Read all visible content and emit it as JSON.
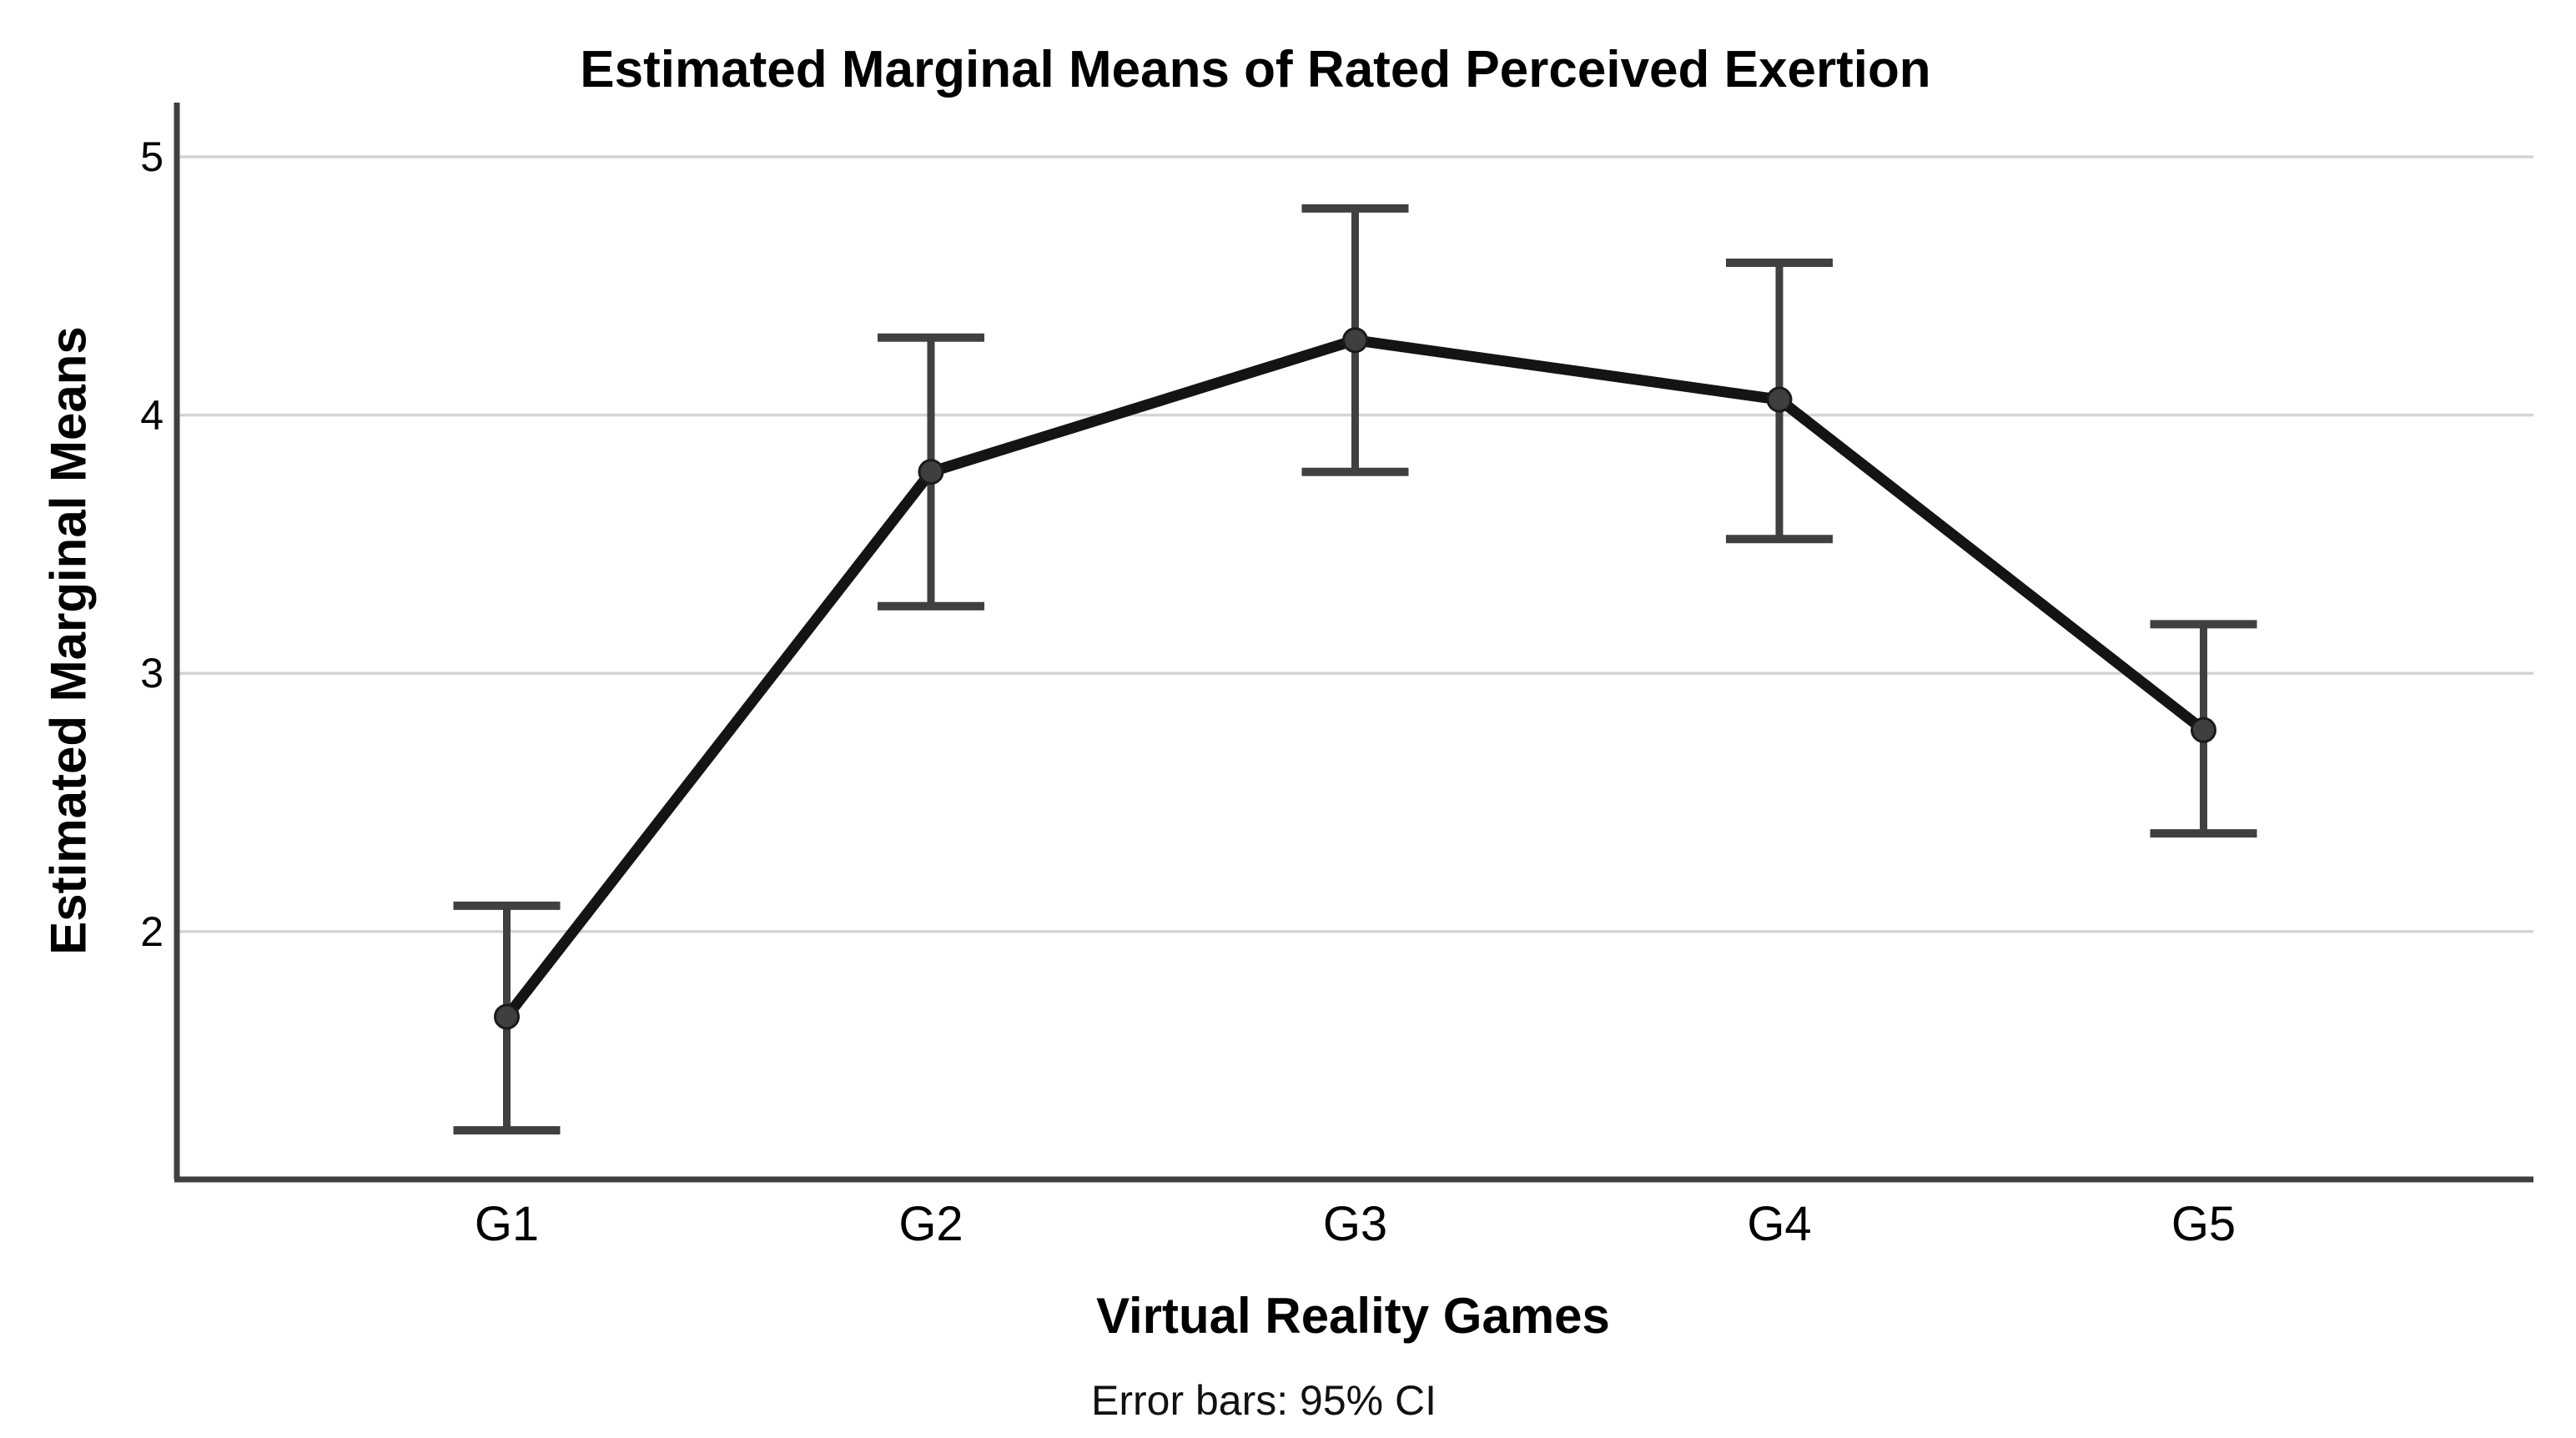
{
  "chart_data": {
    "type": "line",
    "title": "Estimated Marginal Means of Rated Perceived Exertion",
    "xlabel": "Virtual Reality Games",
    "ylabel": "Estimated Marginal Means",
    "footnote": "Error bars: 95% CI",
    "categories": [
      "G1",
      "G2",
      "G3",
      "G4",
      "G5"
    ],
    "series": [
      {
        "name": "Estimated Marginal Means",
        "values": [
          1.67,
          3.78,
          4.29,
          4.06,
          2.78
        ],
        "ci_lower": [
          1.23,
          3.26,
          3.78,
          3.52,
          2.38
        ],
        "ci_upper": [
          2.1,
          4.3,
          4.8,
          4.59,
          3.19
        ]
      }
    ],
    "error_bars": "95% CI",
    "yticks": [
      5,
      4,
      3,
      2
    ],
    "ylim": [
      1.04,
      5.21
    ],
    "grid": "horizontal-only",
    "legend": "none",
    "marker": "filled-circle",
    "colors": {
      "line": "#141414",
      "marker_fill": "#3f3f3f",
      "marker_stroke": "#1a1a1a",
      "error_bar": "#404040",
      "gridline": "#d4d4d4",
      "axis": "#3f3f3f",
      "text": "#000000",
      "background": "#ffffff"
    }
  }
}
